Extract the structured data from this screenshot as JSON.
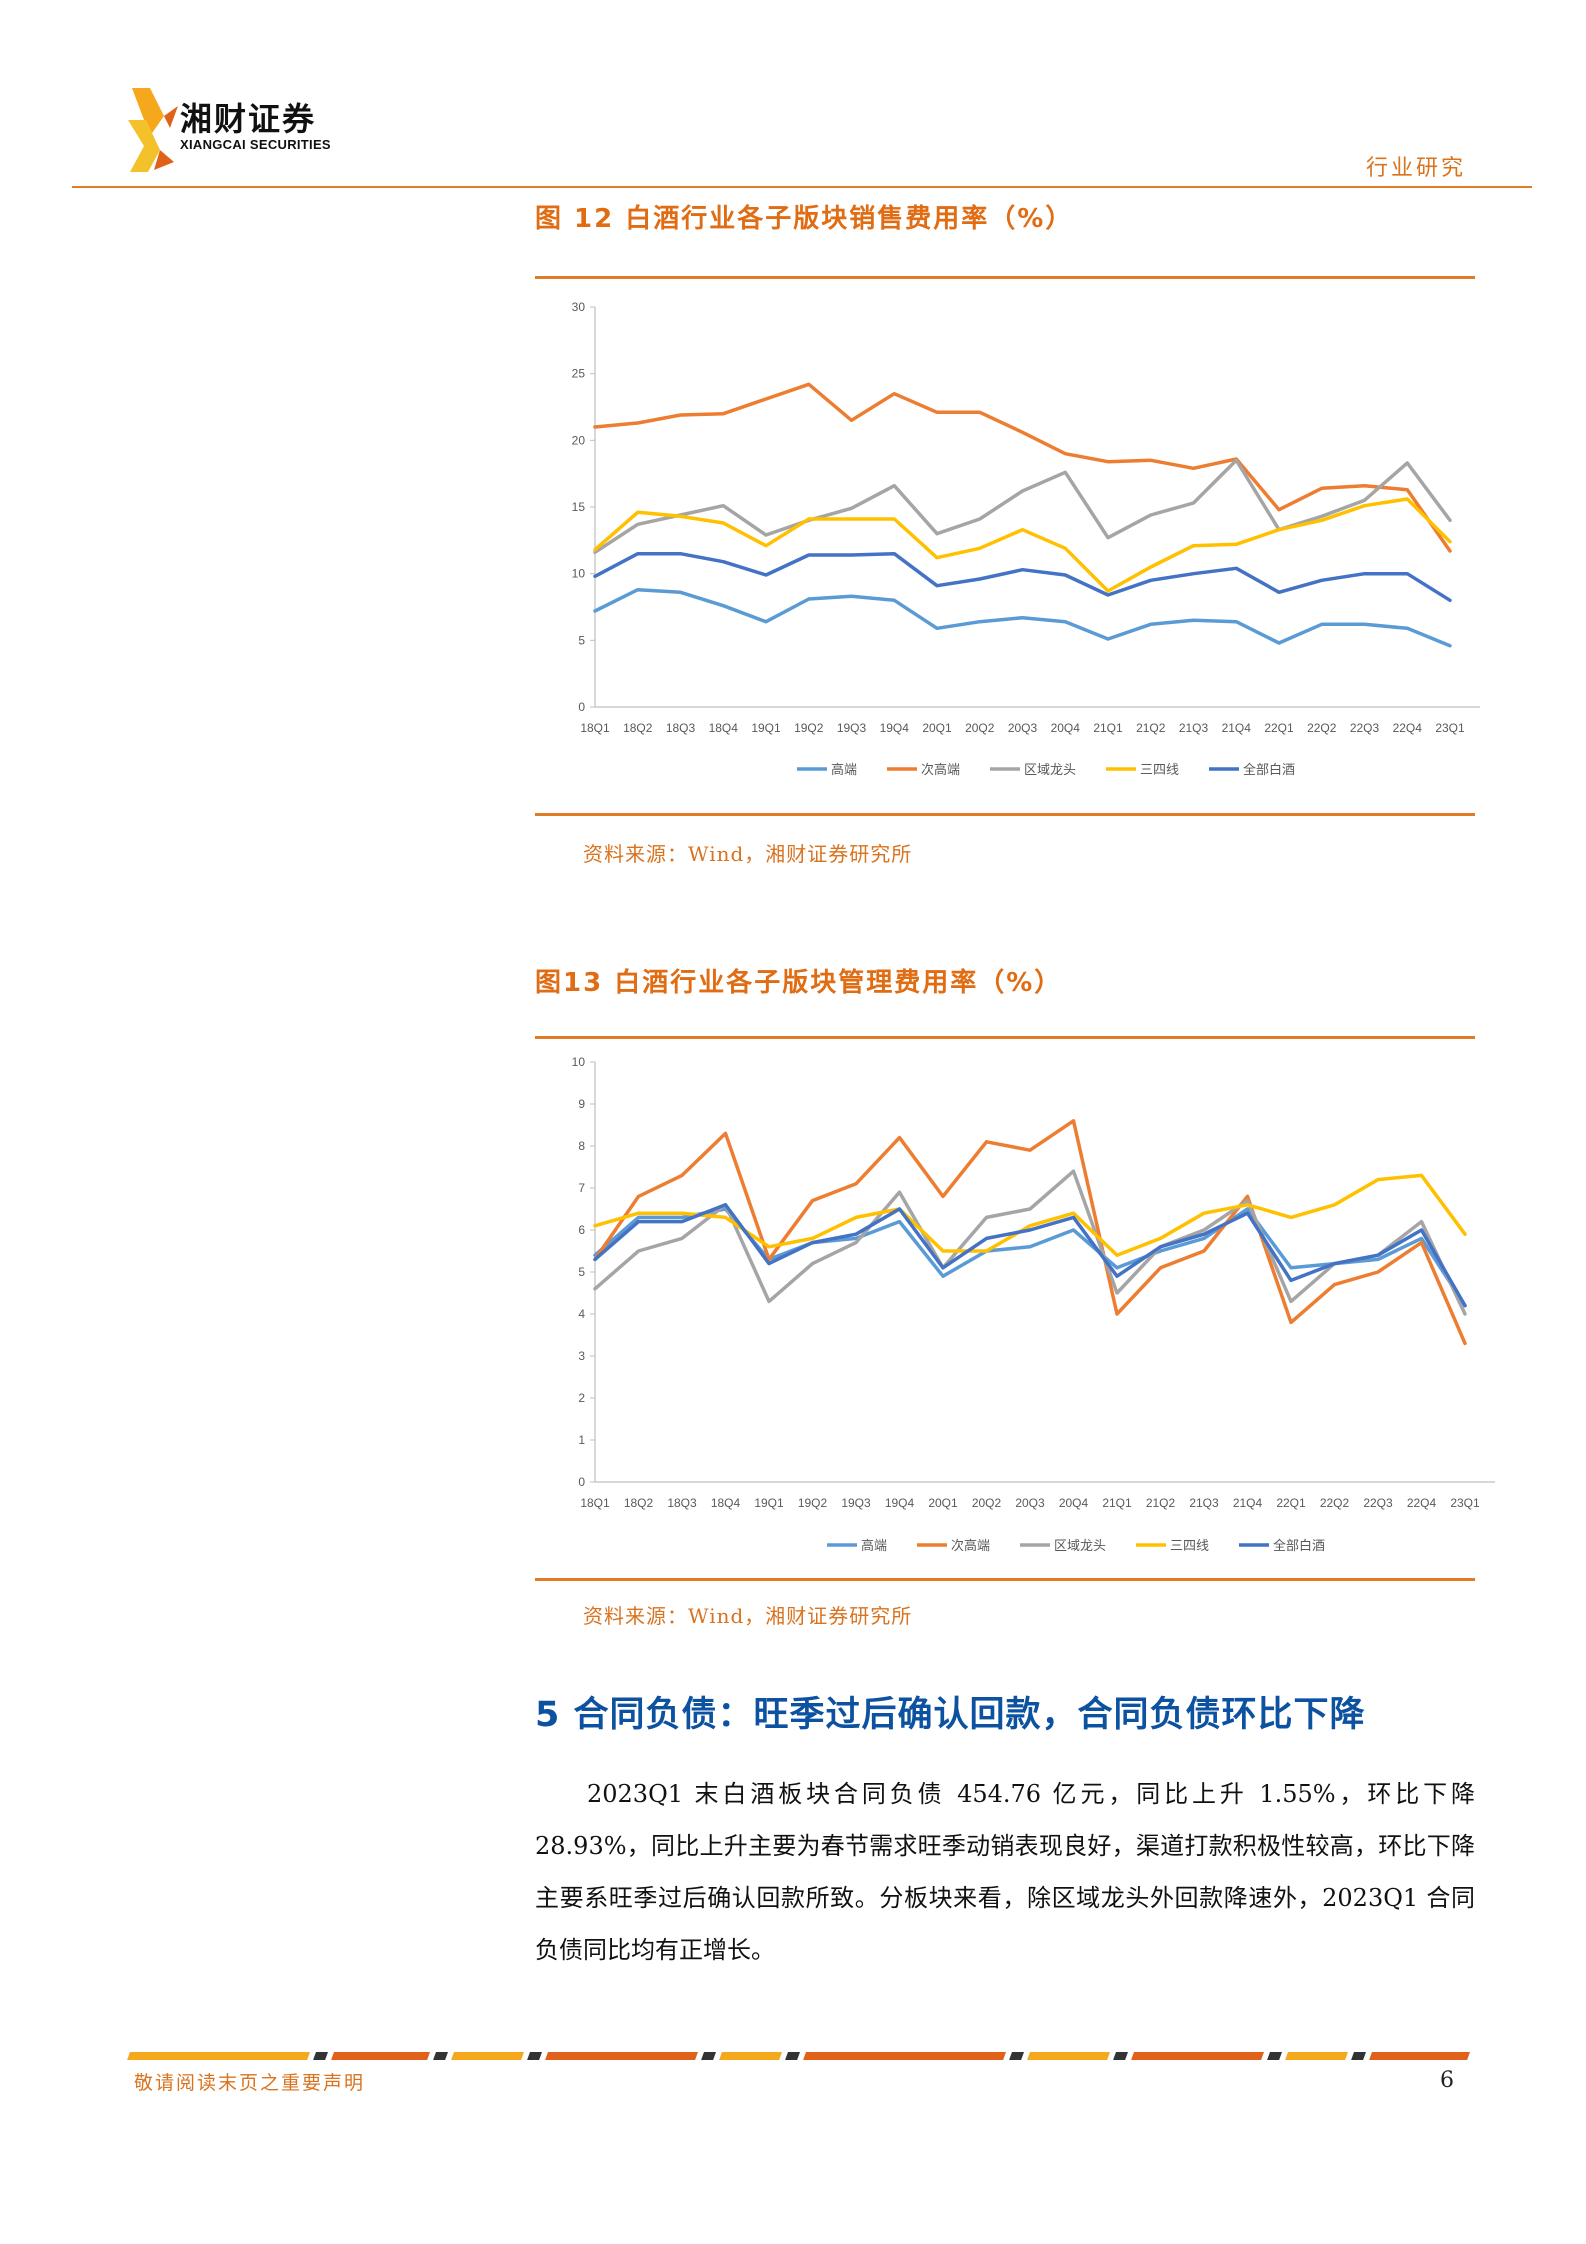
{
  "header": {
    "company_cn": "湘财证券",
    "company_en": "XIANGCAI SECURITIES",
    "section": "行业研究",
    "accent_color": "#e07b26",
    "logo_colors": [
      "#f5a81c",
      "#e0621a",
      "#f3c22b"
    ]
  },
  "figures": [
    {
      "title": "图 12 白酒行业各子版块销售费用率（%）",
      "source": "资料来源：Wind，湘财证券研究所"
    },
    {
      "title": "图13 白酒行业各子版块管理费用率（%）",
      "source": "资料来源：Wind，湘财证券研究所"
    }
  ],
  "chart_data": [
    {
      "type": "line",
      "title": "图 12 白酒行业各子版块销售费用率（%）",
      "categories": [
        "18Q1",
        "18Q2",
        "18Q3",
        "18Q4",
        "19Q1",
        "19Q2",
        "19Q3",
        "19Q4",
        "20Q1",
        "20Q2",
        "20Q3",
        "20Q4",
        "21Q1",
        "21Q2",
        "21Q3",
        "21Q4",
        "22Q1",
        "22Q2",
        "22Q3",
        "22Q4",
        "23Q1"
      ],
      "ylim": [
        0,
        30
      ],
      "yticks": [
        0,
        5,
        10,
        15,
        20,
        25,
        30
      ],
      "grid": false,
      "legend": "bottom",
      "series": [
        {
          "name": "高端",
          "color": "#5b9bd5",
          "values": [
            7.2,
            8.8,
            8.6,
            7.6,
            6.4,
            8.1,
            8.3,
            8.0,
            5.9,
            6.4,
            6.7,
            6.4,
            5.1,
            6.2,
            6.5,
            6.4,
            4.8,
            6.2,
            6.2,
            5.9,
            4.6
          ]
        },
        {
          "name": "次高端",
          "color": "#ed7d31",
          "values": [
            21.0,
            21.3,
            21.9,
            22.0,
            23.1,
            24.2,
            21.5,
            23.5,
            22.1,
            22.1,
            20.6,
            19.0,
            18.4,
            18.5,
            17.9,
            18.6,
            14.8,
            16.4,
            16.6,
            16.3,
            11.7
          ]
        },
        {
          "name": "区域龙头",
          "color": "#a5a5a5",
          "values": [
            11.6,
            13.7,
            14.4,
            15.1,
            12.9,
            14.0,
            14.9,
            16.6,
            13.0,
            14.1,
            16.2,
            17.6,
            12.7,
            14.4,
            15.3,
            18.5,
            13.3,
            14.3,
            15.5,
            18.3,
            14.0
          ]
        },
        {
          "name": "三四线",
          "color": "#ffc000",
          "values": [
            11.8,
            14.6,
            14.3,
            13.8,
            12.1,
            14.1,
            14.1,
            14.1,
            11.2,
            11.9,
            13.3,
            11.9,
            8.7,
            10.5,
            12.1,
            12.2,
            13.3,
            14.0,
            15.1,
            15.6,
            12.4
          ]
        },
        {
          "name": "全部白酒",
          "color": "#4472c4",
          "values": [
            9.8,
            11.5,
            11.5,
            10.9,
            9.9,
            11.4,
            11.4,
            11.5,
            9.1,
            9.6,
            10.3,
            9.9,
            8.4,
            9.5,
            10.0,
            10.4,
            8.6,
            9.5,
            10.0,
            10.0,
            8.0
          ]
        }
      ]
    },
    {
      "type": "line",
      "title": "图13 白酒行业各子版块管理费用率（%）",
      "categories": [
        "18Q1",
        "18Q2",
        "18Q3",
        "18Q4",
        "19Q1",
        "19Q2",
        "19Q3",
        "19Q4",
        "20Q1",
        "20Q2",
        "20Q3",
        "20Q4",
        "21Q1",
        "21Q2",
        "21Q3",
        "21Q4",
        "22Q1",
        "22Q2",
        "22Q3",
        "22Q4",
        "23Q1"
      ],
      "ylim": [
        0,
        10
      ],
      "yticks": [
        0,
        1,
        2,
        3,
        4,
        5,
        6,
        7,
        8,
        9,
        10
      ],
      "grid": false,
      "legend": "bottom",
      "series": [
        {
          "name": "高端",
          "color": "#5b9bd5",
          "values": [
            5.4,
            6.3,
            6.3,
            6.5,
            5.3,
            5.7,
            5.8,
            6.2,
            4.9,
            5.5,
            5.6,
            6.0,
            5.1,
            5.5,
            5.8,
            6.5,
            5.1,
            5.2,
            5.3,
            5.8,
            4.2
          ]
        },
        {
          "name": "次高端",
          "color": "#ed7d31",
          "values": [
            5.3,
            6.8,
            7.3,
            8.3,
            5.3,
            6.7,
            7.1,
            8.2,
            6.8,
            8.1,
            7.9,
            8.6,
            4.0,
            5.1,
            5.5,
            6.8,
            3.8,
            4.7,
            5.0,
            5.7,
            3.3
          ]
        },
        {
          "name": "区域龙头",
          "color": "#a5a5a5",
          "values": [
            4.6,
            5.5,
            5.8,
            6.6,
            4.3,
            5.2,
            5.7,
            6.9,
            5.1,
            6.3,
            6.5,
            7.4,
            4.5,
            5.6,
            6.0,
            6.7,
            4.3,
            5.2,
            5.4,
            6.2,
            4.0
          ]
        },
        {
          "name": "三四线",
          "color": "#ffc000",
          "values": [
            6.1,
            6.4,
            6.4,
            6.3,
            5.6,
            5.8,
            6.3,
            6.5,
            5.5,
            5.5,
            6.1,
            6.4,
            5.4,
            5.8,
            6.4,
            6.6,
            6.3,
            6.6,
            7.2,
            7.3,
            5.9
          ]
        },
        {
          "name": "全部白酒",
          "color": "#4472c4",
          "values": [
            5.3,
            6.2,
            6.2,
            6.6,
            5.2,
            5.7,
            5.9,
            6.5,
            5.1,
            5.8,
            6.0,
            6.3,
            4.9,
            5.6,
            5.9,
            6.4,
            4.8,
            5.2,
            5.4,
            6.0,
            4.2
          ]
        }
      ]
    }
  ],
  "section": {
    "heading": "5 合同负债：旺季过后确认回款，合同负债环比下降",
    "paragraph": "2023Q1 末白酒板块合同负债 454.76 亿元，同比上升 1.55%，环比下降 28.93%，同比上升主要为春节需求旺季动销表现良好，渠道打款积极性较高，环比下降主要系旺季过后确认回款所致。分板块来看，除区域龙头外回款降速外，2023Q1 合同负债同比均有正增长。"
  },
  "footer": {
    "notice": "敬请阅读末页之重要声明",
    "page": "6",
    "bar_colors": [
      "#f5a81c",
      "#e0621a",
      "#333333"
    ]
  }
}
